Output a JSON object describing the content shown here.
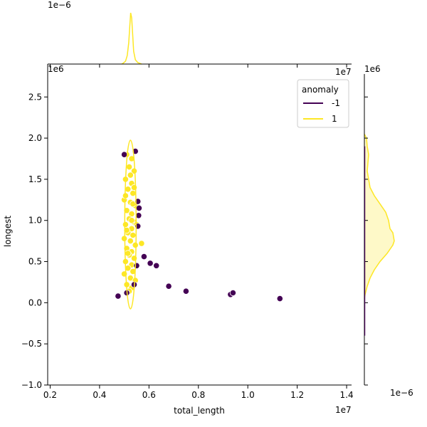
{
  "chart_data": {
    "type": "scatter",
    "joint": {
      "xlabel": "total_length",
      "ylabel": "longest",
      "xlim": [
        1.9,
        14.2
      ],
      "ylim": [
        -1.0,
        2.9
      ],
      "xticks": [
        "0.2",
        "0.4",
        "0.6",
        "0.8",
        "1.0",
        "1.2",
        "1.4"
      ],
      "xtick_values": [
        2,
        4,
        6,
        8,
        10,
        12,
        14
      ],
      "yticks": [
        "−1.0",
        "−0.5",
        "0.0",
        "0.5",
        "1.0",
        "1.5",
        "2.0",
        "2.5"
      ],
      "ytick_values": [
        -1.0,
        -0.5,
        0.0,
        0.5,
        1.0,
        1.5,
        2.0,
        2.5
      ],
      "x_offset_label": "1e7",
      "y_offset_label": "1e6",
      "x_offset_label_top": "1e7",
      "y_offset_label_top": "1e6"
    },
    "marginal_top": {
      "offset_label": "1e−6"
    },
    "marginal_right": {
      "offset_label": "1e6",
      "offset_label_bottom": "1e−6"
    },
    "legend": {
      "title": "anomaly",
      "placement": "top-right",
      "entries": [
        {
          "label": "-1",
          "color": "#440154"
        },
        {
          "label": "1",
          "color": "#fde725"
        }
      ]
    },
    "series": [
      {
        "name": "1",
        "color": "#fde725",
        "points": [
          [
            5.1,
            1.8
          ],
          [
            5.3,
            1.75
          ],
          [
            5.2,
            1.65
          ],
          [
            5.4,
            1.6
          ],
          [
            5.05,
            1.5
          ],
          [
            5.3,
            1.45
          ],
          [
            5.15,
            1.38
          ],
          [
            5.35,
            1.33
          ],
          [
            5.0,
            1.25
          ],
          [
            5.25,
            1.22
          ],
          [
            5.45,
            1.18
          ],
          [
            5.1,
            1.12
          ],
          [
            5.3,
            1.08
          ],
          [
            5.2,
            1.02
          ],
          [
            5.4,
            0.98
          ],
          [
            5.05,
            0.95
          ],
          [
            5.3,
            0.9
          ],
          [
            5.15,
            0.85
          ],
          [
            5.35,
            0.82
          ],
          [
            5.0,
            0.78
          ],
          [
            5.25,
            0.75
          ],
          [
            5.45,
            0.7
          ],
          [
            5.1,
            0.66
          ],
          [
            5.3,
            0.62
          ],
          [
            5.2,
            0.58
          ],
          [
            5.4,
            0.54
          ],
          [
            5.05,
            0.5
          ],
          [
            5.3,
            0.46
          ],
          [
            5.15,
            0.42
          ],
          [
            5.35,
            0.38
          ],
          [
            5.0,
            0.35
          ],
          [
            5.25,
            0.3
          ],
          [
            5.45,
            0.27
          ],
          [
            5.1,
            0.22
          ],
          [
            5.3,
            0.18
          ],
          [
            5.2,
            0.14
          ],
          [
            5.4,
            1.4
          ],
          [
            5.05,
            1.3
          ],
          [
            5.3,
            1.0
          ],
          [
            5.15,
            0.6
          ],
          [
            5.7,
            0.72
          ],
          [
            5.5,
            0.95
          ],
          [
            5.25,
            1.55
          ],
          [
            5.35,
            1.2
          ],
          [
            5.1,
            0.88
          ]
        ]
      },
      {
        "name": "-1",
        "color": "#440154",
        "points": [
          [
            5.0,
            1.8
          ],
          [
            5.45,
            1.84
          ],
          [
            5.55,
            1.23
          ],
          [
            5.6,
            1.15
          ],
          [
            5.58,
            1.06
          ],
          [
            5.55,
            0.93
          ],
          [
            5.8,
            0.56
          ],
          [
            6.05,
            0.48
          ],
          [
            6.3,
            0.45
          ],
          [
            5.5,
            0.45
          ],
          [
            6.8,
            0.2
          ],
          [
            7.5,
            0.14
          ],
          [
            9.3,
            0.1
          ],
          [
            9.4,
            0.12
          ],
          [
            11.3,
            0.05
          ],
          [
            4.75,
            0.08
          ],
          [
            5.1,
            0.12
          ],
          [
            5.4,
            0.22
          ]
        ]
      }
    ]
  }
}
